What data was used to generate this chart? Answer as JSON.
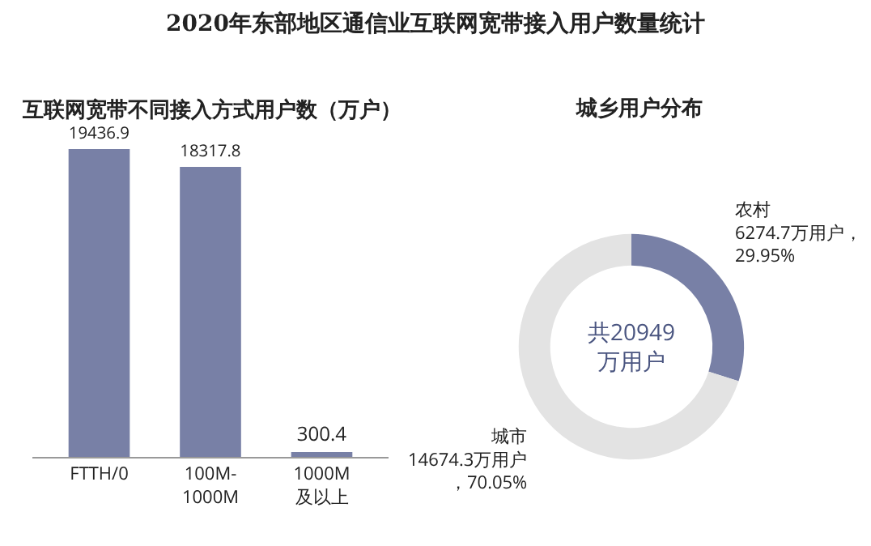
{
  "chart_data": [
    {
      "type": "bar",
      "title": "2020年东部地区通信业互联网宽带接入用户数量统计",
      "subtitle": "互联网宽带不同接入方式用户数（万户）",
      "categories": [
        "FTTH/0",
        "100M-1000M",
        "1000M及以上"
      ],
      "values": [
        19436.9,
        18317.8,
        300.4
      ],
      "color": "#7880a6",
      "data_labels": true,
      "tick_labels": "x"
    },
    {
      "type": "donut",
      "title": "城乡用户分布",
      "categories": [
        "农村",
        "城市"
      ],
      "values": [
        6274.7,
        14674.3
      ],
      "colors": [
        "#7880a6",
        "#e3e3e3"
      ],
      "value_labels": [
        "6274.7万用户，29.95%",
        "14674.3万用户，70.05%"
      ],
      "annotations": [
        "共20949万用户"
      ]
    }
  ]
}
